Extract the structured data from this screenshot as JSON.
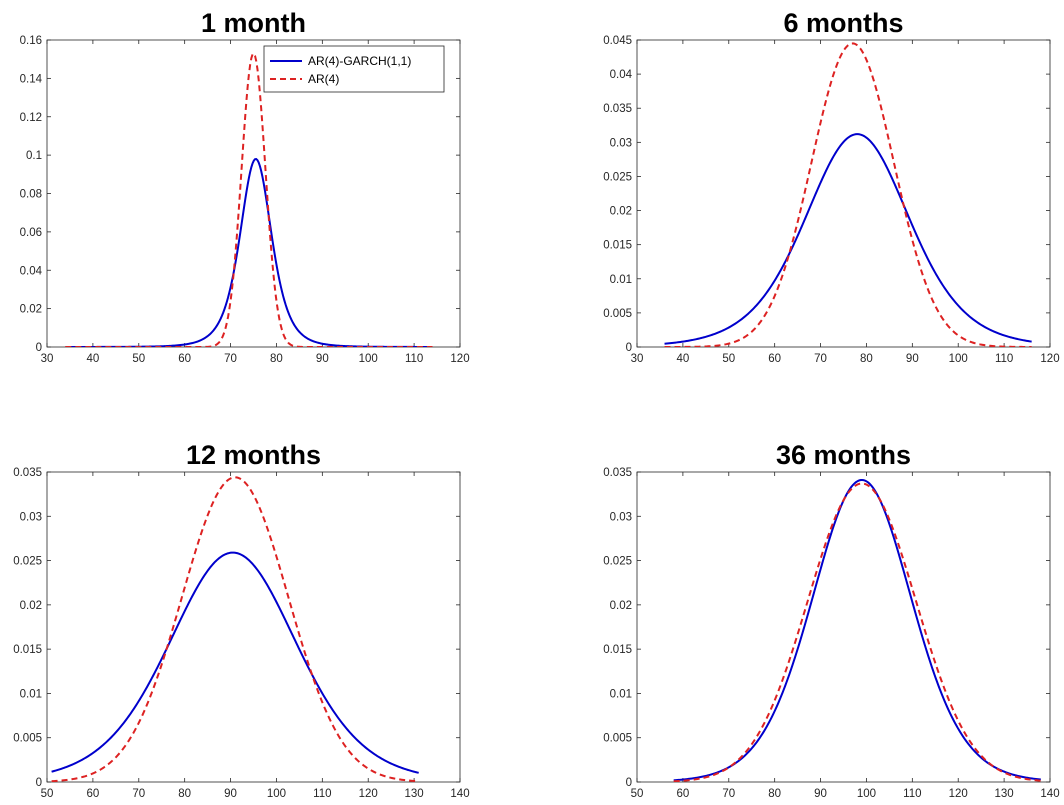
{
  "colors": {
    "garch": "#0000CC",
    "ar": "#DD2222",
    "axis": "#262626"
  },
  "legend": {
    "placement": "top-right of first panel",
    "entries": [
      "AR(4)-GARCH(1,1)",
      "AR(4)"
    ]
  },
  "chart_data": [
    {
      "type": "line",
      "title": "1 month",
      "xlim": [
        30,
        120
      ],
      "ylim": [
        0,
        0.16
      ],
      "xticks": [
        "30",
        "40",
        "50",
        "60",
        "70",
        "80",
        "90",
        "100",
        "110",
        "120"
      ],
      "yticks": [
        "0",
        "0.02",
        "0.04",
        "0.06",
        "0.08",
        "0.1",
        "0.12",
        "0.14",
        "0.16"
      ],
      "legend_shown": true,
      "x_range": [
        34,
        114
      ],
      "series": [
        {
          "name": "AR(4)-GARCH(1,1)",
          "style": "solid",
          "dist": "t",
          "center": 75.5,
          "peak": 0.098,
          "scale": 3.6,
          "df": 4
        },
        {
          "name": "AR(4)",
          "style": "dashed",
          "dist": "normal",
          "center": 75,
          "peak": 0.153,
          "scale": 2.6
        }
      ]
    },
    {
      "type": "line",
      "title": "6 months",
      "xlim": [
        30,
        120
      ],
      "ylim": [
        0,
        0.045
      ],
      "xticks": [
        "30",
        "40",
        "50",
        "60",
        "70",
        "80",
        "90",
        "100",
        "110",
        "120"
      ],
      "yticks": [
        "0",
        "0.005",
        "0.01",
        "0.015",
        "0.02",
        "0.025",
        "0.03",
        "0.035",
        "0.04",
        "0.045"
      ],
      "legend_shown": false,
      "x_range": [
        36,
        116
      ],
      "series": [
        {
          "name": "AR(4)-GARCH(1,1)",
          "style": "solid",
          "dist": "t",
          "center": 78,
          "peak": 0.0312,
          "scale": 11.7,
          "df": 7
        },
        {
          "name": "AR(4)",
          "style": "dashed",
          "dist": "normal",
          "center": 77,
          "peak": 0.0445,
          "scale": 9.0
        }
      ]
    },
    {
      "type": "line",
      "title": "12 months",
      "xlim": [
        50,
        140
      ],
      "ylim": [
        0,
        0.035
      ],
      "xticks": [
        "50",
        "60",
        "70",
        "80",
        "90",
        "100",
        "110",
        "120",
        "130",
        "140"
      ],
      "yticks": [
        "0",
        "0.005",
        "0.01",
        "0.015",
        "0.02",
        "0.025",
        "0.03",
        "0.035"
      ],
      "legend_shown": false,
      "x_range": [
        51,
        131
      ],
      "series": [
        {
          "name": "AR(4)-GARCH(1,1)",
          "style": "solid",
          "dist": "t",
          "center": 90.5,
          "peak": 0.0259,
          "scale": 14.2,
          "df": 9
        },
        {
          "name": "AR(4)",
          "style": "dashed",
          "dist": "normal",
          "center": 91,
          "peak": 0.0344,
          "scale": 11.6
        }
      ]
    },
    {
      "type": "line",
      "title": "36 months",
      "xlim": [
        50,
        140
      ],
      "ylim": [
        0,
        0.035
      ],
      "xticks": [
        "50",
        "60",
        "70",
        "80",
        "90",
        "100",
        "110",
        "120",
        "130",
        "140"
      ],
      "yticks": [
        "0",
        "0.005",
        "0.01",
        "0.015",
        "0.02",
        "0.025",
        "0.03",
        "0.035"
      ],
      "legend_shown": false,
      "x_range": [
        58,
        138
      ],
      "series": [
        {
          "name": "AR(4)-GARCH(1,1)",
          "style": "solid",
          "dist": "t",
          "center": 99,
          "peak": 0.0341,
          "scale": 11.0,
          "df": 14
        },
        {
          "name": "AR(4)",
          "style": "dashed",
          "dist": "normal",
          "center": 99,
          "peak": 0.0337,
          "scale": 11.8
        }
      ]
    }
  ]
}
